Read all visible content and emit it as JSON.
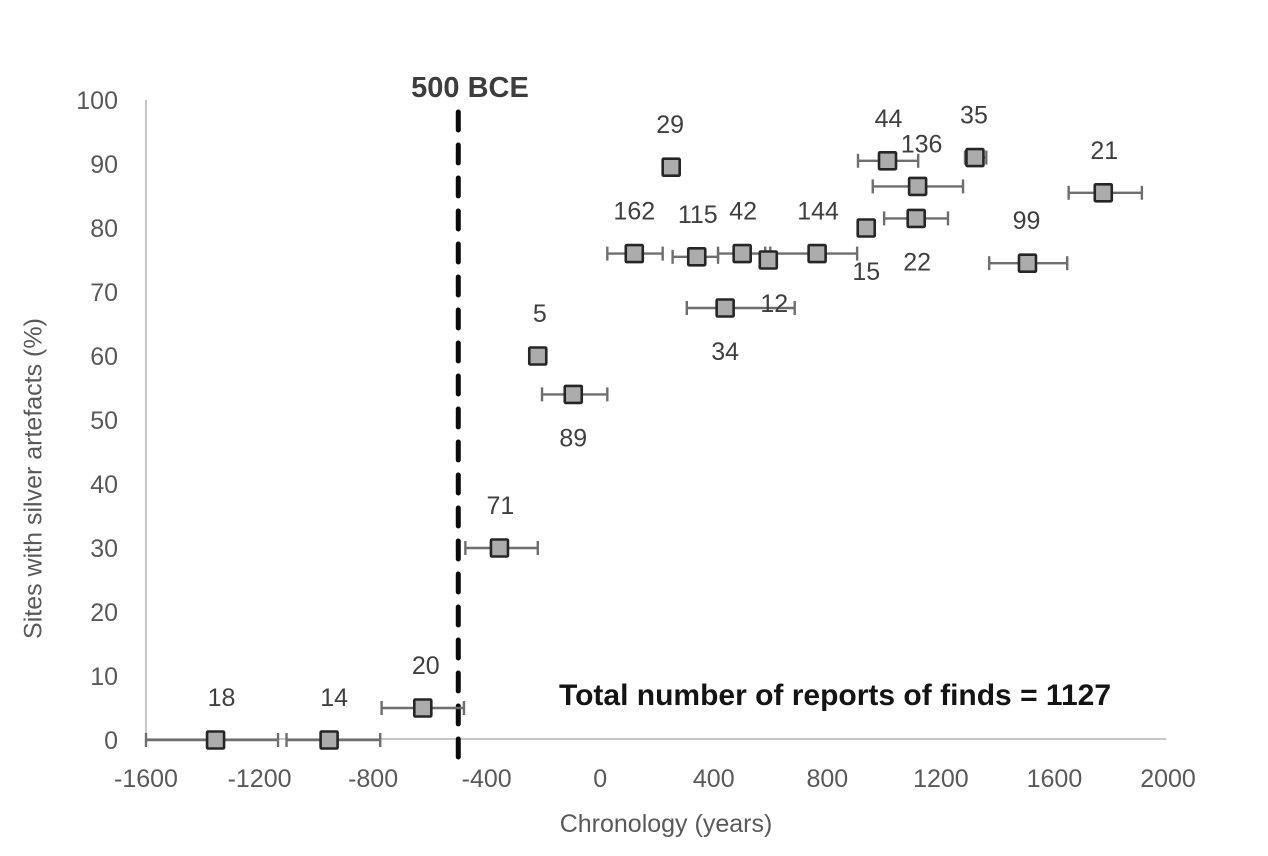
{
  "chart_data": {
    "type": "scatter",
    "title": "",
    "xlabel": "Chronology (years)",
    "ylabel": "Sites with silver artefacts (%)",
    "xlim": [
      -1600,
      2000
    ],
    "ylim": [
      0,
      100
    ],
    "x_ticks": [
      -1600,
      -1200,
      -800,
      -400,
      0,
      400,
      800,
      1200,
      1600,
      2000
    ],
    "y_ticks": [
      0,
      10,
      20,
      30,
      40,
      50,
      60,
      70,
      80,
      90,
      100
    ],
    "grid": false,
    "legend": "none",
    "marker_shape": "square",
    "reference_line": {
      "x": -500,
      "style": "dashed",
      "label": "500 BCE"
    },
    "annotation_total": {
      "text": "Total number of reports of finds = 1127",
      "x": 810,
      "y": 6
    },
    "points": [
      {
        "label": "18",
        "x": -1355,
        "y": 0,
        "err_low": -1600,
        "err_high": -1135,
        "label_pos": "above",
        "dx": 6
      },
      {
        "label": "14",
        "x": -955,
        "y": 0,
        "err_low": -1105,
        "err_high": -775,
        "label_pos": "above",
        "dx": 5
      },
      {
        "label": "20",
        "x": -625,
        "y": 5,
        "err_low": -770,
        "err_high": -480,
        "label_pos": "above",
        "dx": 3
      },
      {
        "label": "71",
        "x": -355,
        "y": 30,
        "err_low": -475,
        "err_high": -220,
        "label_pos": "above",
        "dx": 1
      },
      {
        "label": "5",
        "x": -220,
        "y": 60,
        "err_low": null,
        "err_high": null,
        "label_pos": "above",
        "dx": 2
      },
      {
        "label": "89",
        "x": -95,
        "y": 54,
        "err_low": -205,
        "err_high": 25,
        "label_pos": "below",
        "dx": 0
      },
      {
        "label": "29",
        "x": 250,
        "y": 89.5,
        "err_low": null,
        "err_high": null,
        "label_pos": "above",
        "dx": -1
      },
      {
        "label": "162",
        "x": 120,
        "y": 76,
        "err_low": 25,
        "err_high": 220,
        "label_pos": "above",
        "dx": 0
      },
      {
        "label": "115",
        "x": 340,
        "y": 75.5,
        "err_low": 255,
        "err_high": 415,
        "label_pos": "above",
        "dx": 1
      },
      {
        "label": "42",
        "x": 500,
        "y": 76,
        "err_low": 415,
        "err_high": 581,
        "label_pos": "above",
        "dx": 1
      },
      {
        "label": "12",
        "x": 592,
        "y": 75,
        "err_low": 581,
        "err_high": 599,
        "label_pos": "below",
        "dx": 6
      },
      {
        "label": "34",
        "x": 440,
        "y": 67.5,
        "err_low": 305,
        "err_high": 685,
        "label_pos": "below",
        "dx": 0
      },
      {
        "label": "144",
        "x": 764,
        "y": 76,
        "err_low": 599,
        "err_high": 905,
        "label_pos": "above",
        "dx": 1
      },
      {
        "label": "15",
        "x": 937,
        "y": 80,
        "err_low": null,
        "err_high": null,
        "label_pos": "below",
        "dx": 0
      },
      {
        "label": "44",
        "x": 1012,
        "y": 90.5,
        "err_low": 908,
        "err_high": 1120,
        "label_pos": "above",
        "dx": 1
      },
      {
        "label": "136",
        "x": 1118,
        "y": 86.5,
        "err_low": 960,
        "err_high": 1278,
        "label_pos": "above",
        "dx": 4
      },
      {
        "label": "22",
        "x": 1113,
        "y": 81.5,
        "err_low": 1000,
        "err_high": 1225,
        "label_pos": "below",
        "dx": 1
      },
      {
        "label": "35",
        "x": 1320,
        "y": 91,
        "err_low": 1285,
        "err_high": 1360,
        "label_pos": "above",
        "dx": -1
      },
      {
        "label": "99",
        "x": 1505,
        "y": 74.5,
        "err_low": 1370,
        "err_high": 1645,
        "label_pos": "above",
        "dx": -1
      },
      {
        "label": "21",
        "x": 1772,
        "y": 85.5,
        "err_low": 1650,
        "err_high": 1908,
        "label_pos": "above",
        "dx": 1
      }
    ],
    "colors": {
      "background": "#ffffff",
      "axis_line": "#c6c6c6",
      "tick_text": "#595959",
      "marker_fill": "#acacac",
      "marker_stroke": "#262626",
      "error_bar": "#6e6e6e",
      "data_label": "#3f3f3f",
      "reference_line": "#0a0a0a"
    }
  }
}
